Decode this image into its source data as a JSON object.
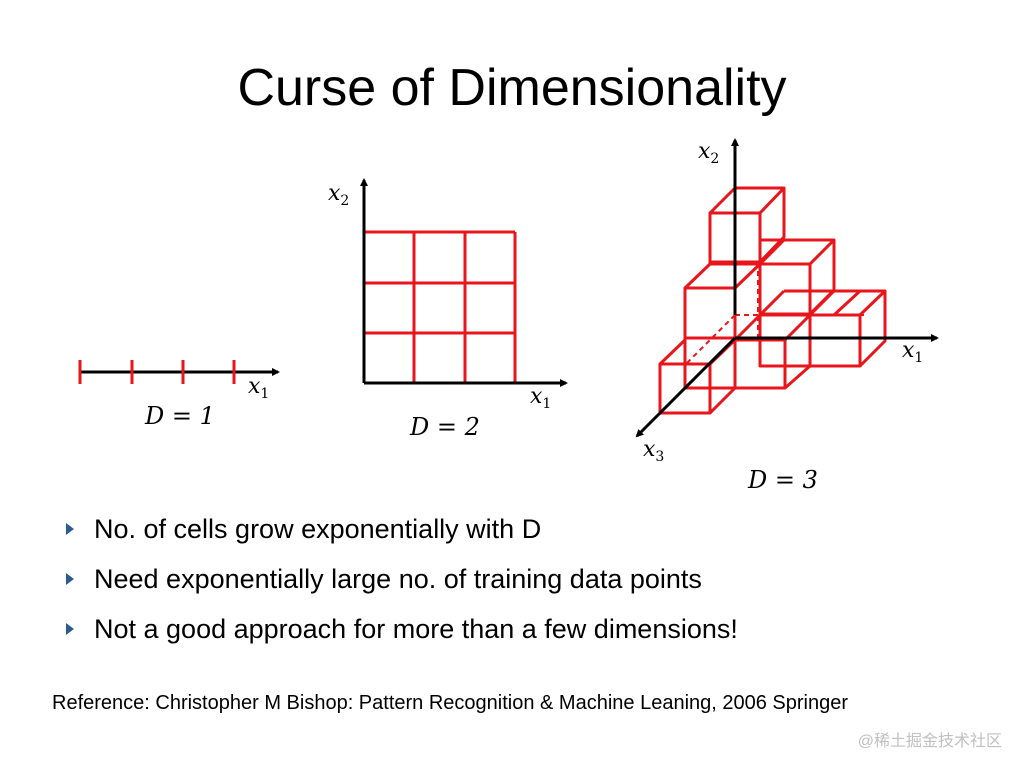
{
  "title": "Curse of Dimensionality",
  "figures": {
    "d1": {
      "axis_var": "x",
      "axis_sub": "1",
      "label": "D = 1"
    },
    "d2": {
      "x_var": "x",
      "x_sub": "1",
      "y_var": "x",
      "y_sub": "2",
      "label": "D = 2"
    },
    "d3": {
      "x1_var": "x",
      "x1_sub": "1",
      "x2_var": "x",
      "x2_sub": "2",
      "x3_var": "x",
      "x3_sub": "3",
      "label": "D = 3"
    }
  },
  "bullets": [
    "No. of cells grow exponentially with D",
    "Need exponentially large no. of training data points",
    "Not a good approach for more than a few dimensions!"
  ],
  "reference": "Reference: Christopher M Bishop: Pattern Recognition & Machine Leaning, 2006 Springer",
  "watermark": "@稀土掘金技术社区",
  "colors": {
    "grid": "#e8151b",
    "axis": "#000000",
    "bullet": "#2e5b8f"
  }
}
